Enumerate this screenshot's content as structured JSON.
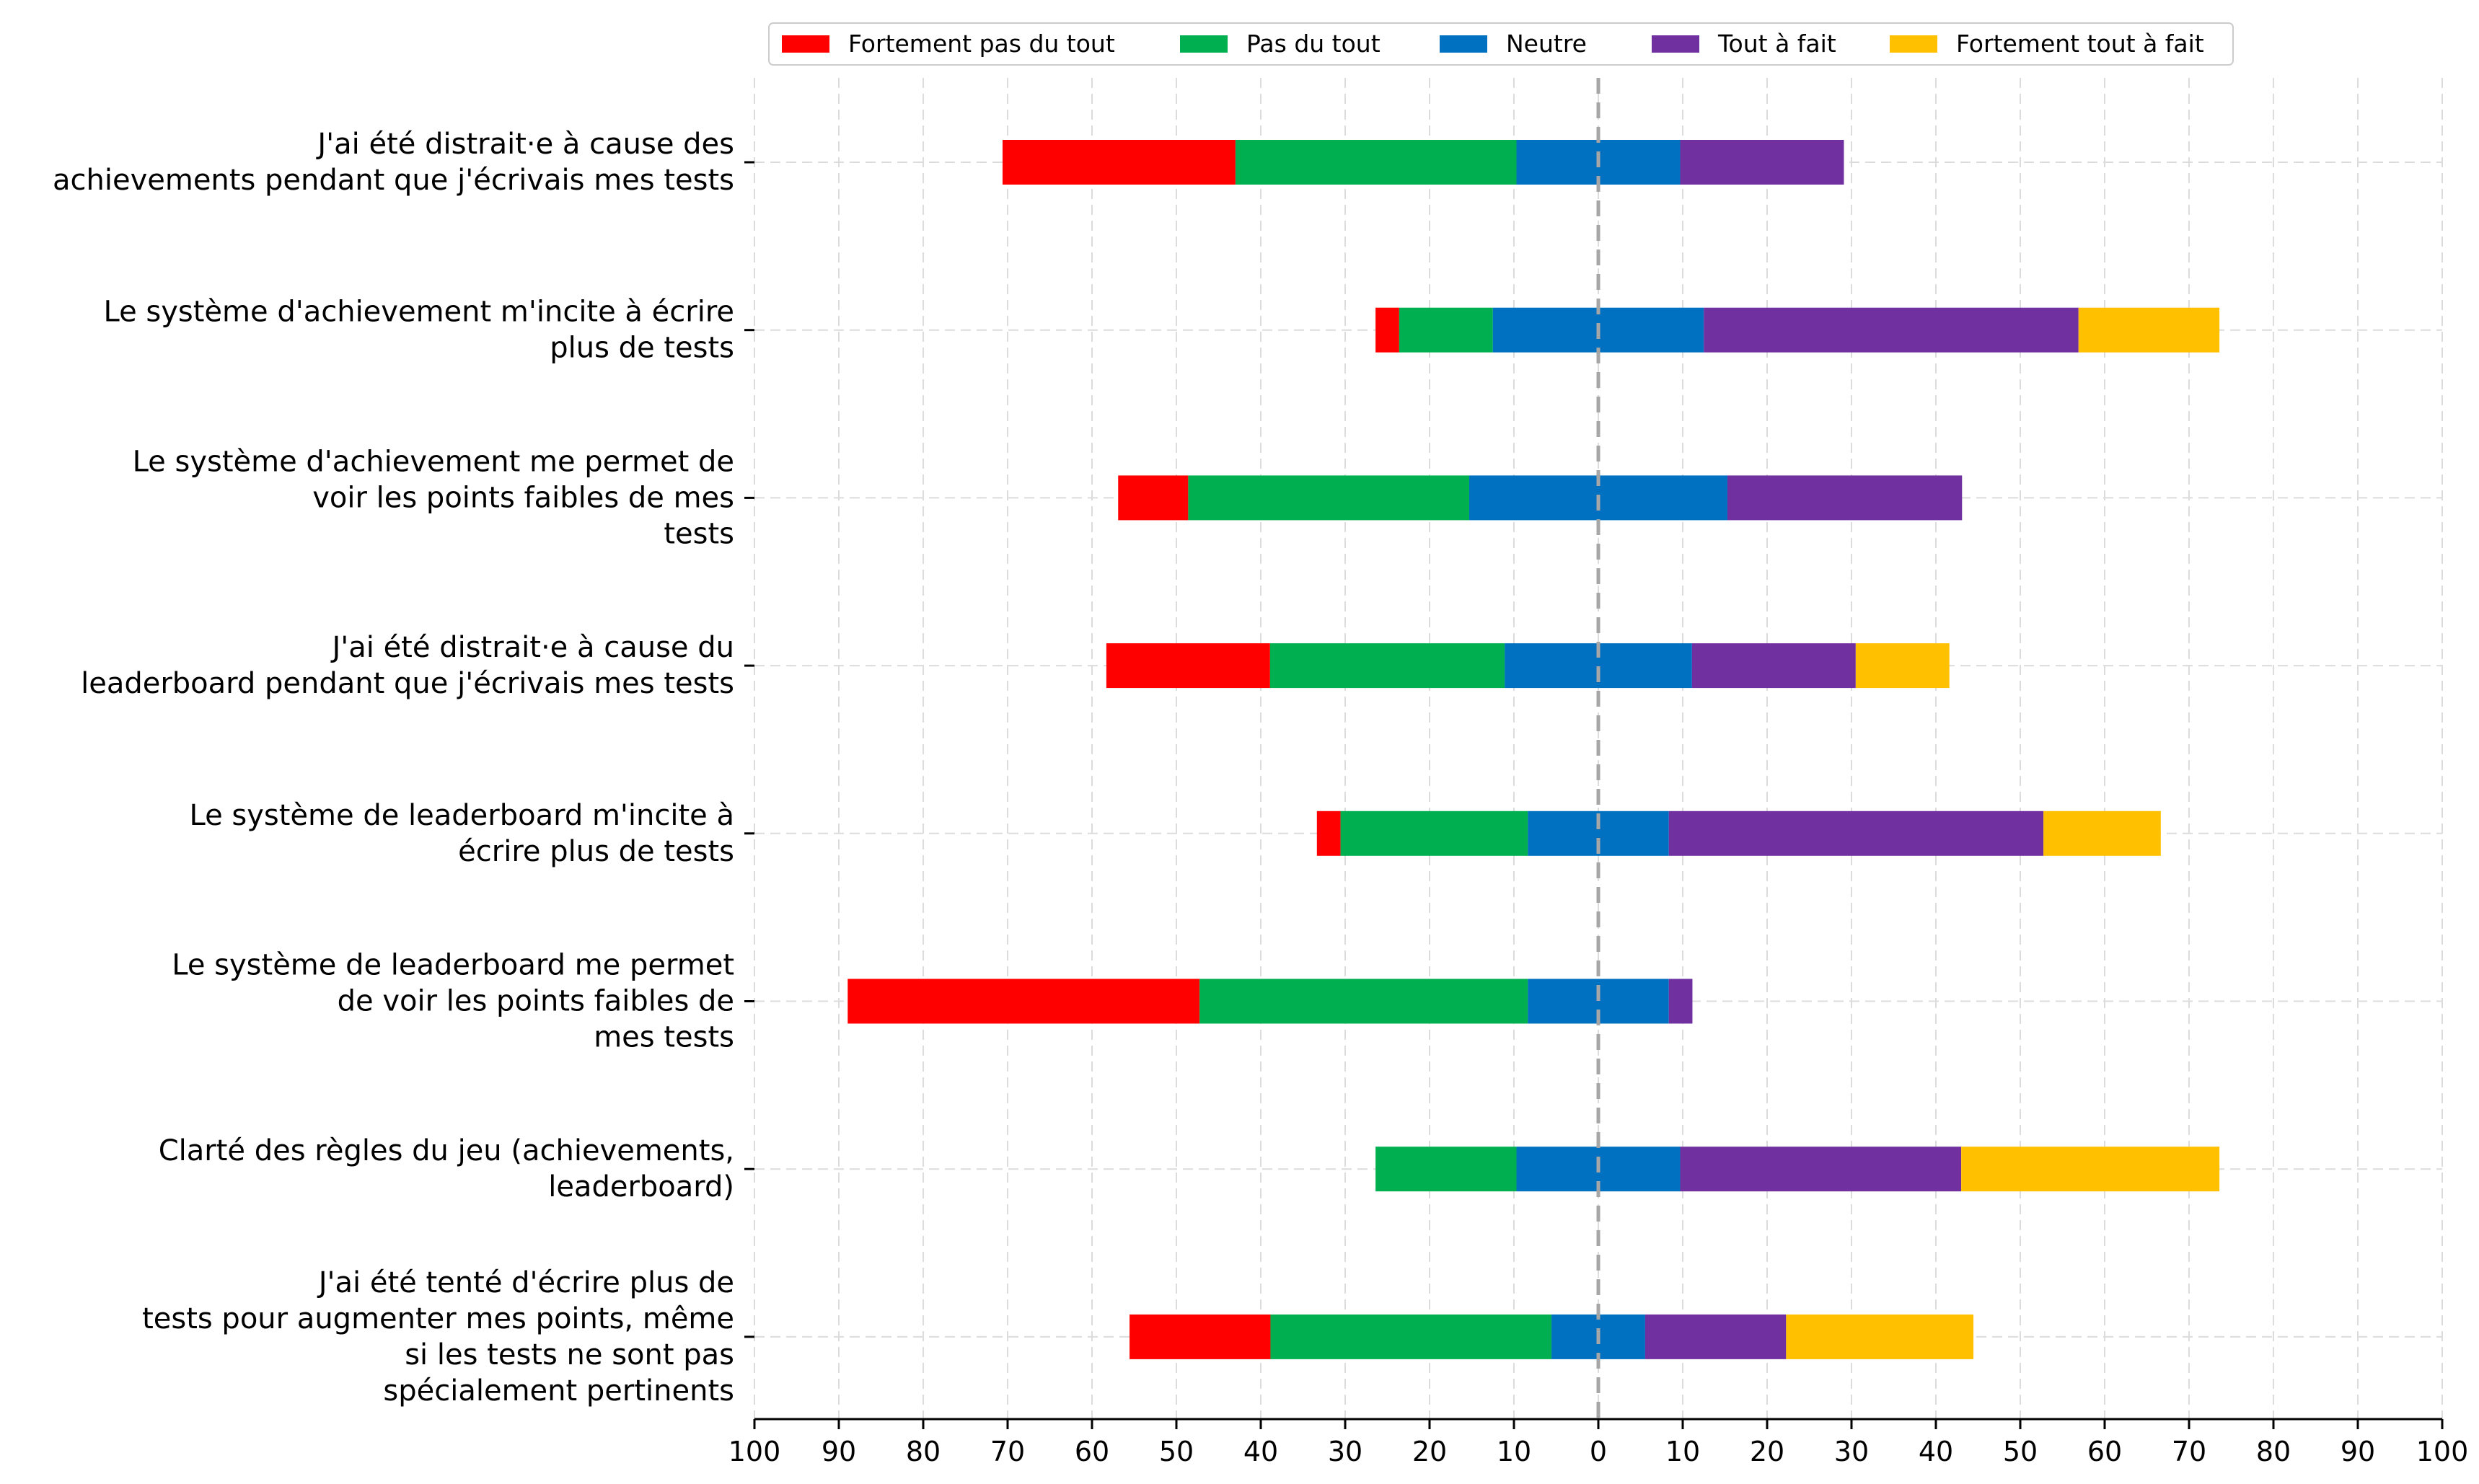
{
  "chart_data": {
    "type": "bar",
    "orientation": "horizontal-diverging-stacked",
    "title": "",
    "xlabel": "",
    "ylabel": "",
    "xlim": [
      -100,
      100
    ],
    "x_ticks": [
      -100,
      -90,
      -80,
      -70,
      -60,
      -50,
      -40,
      -30,
      -20,
      -10,
      0,
      10,
      20,
      30,
      40,
      50,
      60,
      70,
      80,
      90,
      100
    ],
    "x_tick_labels": [
      "100",
      "90",
      "80",
      "70",
      "60",
      "50",
      "40",
      "30",
      "20",
      "10",
      "0",
      "10",
      "20",
      "30",
      "40",
      "50",
      "60",
      "70",
      "80",
      "90",
      "100"
    ],
    "grid": true,
    "legend": "top-center",
    "categories": [
      [
        "J'ai été distrait·e à cause des",
        "achievements pendant que j'écrivais mes tests"
      ],
      [
        "Le système d'achievement m'incite à écrire",
        "plus de tests"
      ],
      [
        "Le système d'achievement me permet de",
        "voir les points faibles de mes",
        "tests"
      ],
      [
        "J'ai été distrait·e à cause du",
        "leaderboard pendant que j'écrivais mes tests"
      ],
      [
        "Le système de leaderboard m'incite à",
        "écrire plus de tests"
      ],
      [
        "Le système de leaderboard me permet",
        "de voir les points faibles de",
        "mes tests"
      ],
      [
        "Clarté des règles du jeu (achievements,",
        "leaderboard)"
      ],
      [
        "J'ai été tenté d'écrire plus de",
        "tests pour augmenter mes points, même",
        "si les tests ne sont pas",
        "spécialement pertinents"
      ]
    ],
    "series": [
      {
        "name": "Fortement pas du tout",
        "color": "#ff0000",
        "values": [
          27.6,
          2.8,
          8.3,
          19.4,
          2.8,
          41.7,
          0,
          16.7
        ]
      },
      {
        "name": "Pas du tout",
        "color": "#00b050",
        "values": [
          33.3,
          11.1,
          33.3,
          27.8,
          22.2,
          38.9,
          16.7,
          33.3
        ]
      },
      {
        "name": "Neutre",
        "color": "#0070c0",
        "values": [
          19.4,
          25.0,
          30.6,
          22.2,
          16.7,
          16.7,
          19.4,
          11.1
        ]
      },
      {
        "name": "Tout à fait",
        "color": "#7030a0",
        "values": [
          19.4,
          44.4,
          27.8,
          19.4,
          44.4,
          2.8,
          33.3,
          16.7
        ]
      },
      {
        "name": "Fortement tout à fait",
        "color": "#ffc000",
        "values": [
          0,
          16.7,
          0,
          11.1,
          13.9,
          0,
          30.6,
          22.2
        ]
      }
    ],
    "center_line": 0
  }
}
